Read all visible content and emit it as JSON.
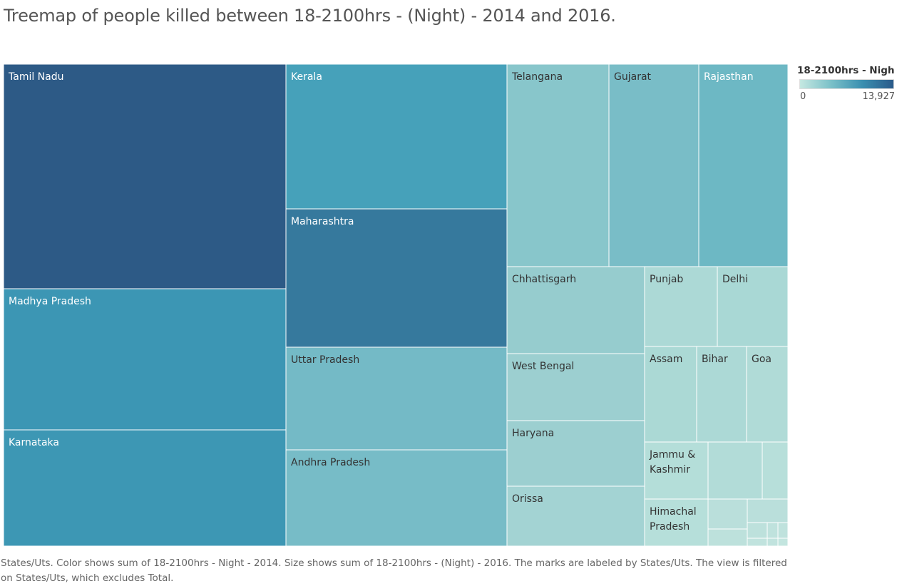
{
  "title": "Treemap of people killed between 18-2100hrs - (Night) - 2014 and 2016.",
  "legend": {
    "title": "18-2100hrs - Nigh..",
    "min_label": "0",
    "max_label": "13,927"
  },
  "caption": "States/Uts.  Color shows sum of 18-2100hrs - Night - 2014.  Size shows sum of 18-2100hrs - (Night) - 2016.  The marks are labeled by States/Uts. The view is filtered on States/Uts, which excludes Total.",
  "chart_data": {
    "type": "treemap",
    "color_measure": "18-2100hrs - Night - 2014",
    "size_measure": "18-2100hrs - (Night) - 2016",
    "color_range": [
      0,
      13927
    ],
    "items": [
      {
        "name": "Tamil Nadu",
        "label": "Tamil Nadu",
        "size": 12350,
        "color_value": 13927,
        "color": "#2d5a86"
      },
      {
        "name": "Madhya Pradesh",
        "label": "Madhya Pradesh",
        "size": 7820,
        "color_value": 7600,
        "color": "#3c96b4"
      },
      {
        "name": "Karnataka",
        "label": "Karnataka",
        "size": 6270,
        "color_value": 7500,
        "color": "#3d97b4"
      },
      {
        "name": "Kerala",
        "label": "Kerala",
        "size": 6220,
        "color_value": 7000,
        "color": "#46a1ba"
      },
      {
        "name": "Maharashtra",
        "label": "Maharashtra",
        "size": 5930,
        "color_value": 10200,
        "color": "#36799d"
      },
      {
        "name": "Uttar Pradesh",
        "label": "Uttar Pradesh",
        "size": 4400,
        "color_value": 4700,
        "color": "#74bac6"
      },
      {
        "name": "Andhra Pradesh",
        "label": "Andhra Pradesh",
        "size": 4080,
        "color_value": 4500,
        "color": "#77bcc7"
      },
      {
        "name": "Telangana",
        "label": "Telangana",
        "size": 3980,
        "color_value": 3600,
        "color": "#88c6cb"
      },
      {
        "name": "Gujarat",
        "label": "Gujarat",
        "size": 3520,
        "color_value": 4300,
        "color": "#79bdc7"
      },
      {
        "name": "Rajasthan",
        "label": "Rajasthan",
        "size": 3470,
        "color_value": 5000,
        "color": "#6db8c4"
      },
      {
        "name": "Chhattisgarh",
        "label": "Chhattisgarh",
        "size": 2270,
        "color_value": 3000,
        "color": "#96ccce"
      },
      {
        "name": "West Bengal",
        "label": "West Bengal",
        "size": 1750,
        "color_value": 2800,
        "color": "#9ccfd0"
      },
      {
        "name": "Haryana",
        "label": "Haryana",
        "size": 1720,
        "color_value": 2800,
        "color": "#9ccfd0"
      },
      {
        "name": "Orissa",
        "label": "Orissa",
        "size": 1550,
        "color_value": 2400,
        "color": "#a3d3d3"
      },
      {
        "name": "Punjab",
        "label": "Punjab",
        "size": 1130,
        "color_value": 1900,
        "color": "#acd9d6"
      },
      {
        "name": "Delhi",
        "label": "Delhi",
        "size": 1100,
        "color_value": 2000,
        "color": "#a9d8d5"
      },
      {
        "name": "Assam",
        "label": "Assam",
        "size": 960,
        "color_value": 1900,
        "color": "#abd9d5"
      },
      {
        "name": "Bihar",
        "label": "Bihar",
        "size": 910,
        "color_value": 1900,
        "color": "#acd9d6"
      },
      {
        "name": "Goa",
        "label": "Goa",
        "size": 880,
        "color_value": 1700,
        "color": "#b0dbd7"
      },
      {
        "name": "Jammu & Kashmir",
        "label": "Jammu &\nKashmir",
        "size": 590,
        "color_value": 1400,
        "color": "#b4ded9"
      },
      {
        "name": "",
        "label": "",
        "size": 590,
        "color_value": 1500,
        "color": "#b2dcd8"
      },
      {
        "name": "",
        "label": "",
        "size": 290,
        "color_value": 1200,
        "color": "#b7dfda"
      },
      {
        "name": "Himachal Pradesh",
        "label": "Himachal\nPradesh",
        "size": 610,
        "color_value": 1200,
        "color": "#b6dfda"
      },
      {
        "name": "",
        "label": "",
        "size": 190,
        "color_value": 1000,
        "color": "#badfdb"
      },
      {
        "name": "",
        "label": "",
        "size": 90,
        "color_value": 900,
        "color": "#bde1dc"
      },
      {
        "name": "",
        "label": "",
        "size": 130,
        "color_value": 1000,
        "color": "#badfdb"
      },
      {
        "name": "",
        "label": "",
        "size": 90,
        "color_value": 900,
        "color": "#bde1dc"
      },
      {
        "name": "",
        "label": "",
        "size": 60,
        "color_value": 800,
        "color": "#bfe2dd"
      },
      {
        "name": "",
        "label": "",
        "size": 40,
        "color_value": 800,
        "color": "#bfe2dd"
      },
      {
        "name": "",
        "label": "",
        "size": 30,
        "color_value": 700,
        "color": "#c1e3de"
      },
      {
        "name": "",
        "label": "",
        "size": 20,
        "color_value": 700,
        "color": "#c1e3de"
      },
      {
        "name": "",
        "label": "",
        "size": 20,
        "color_value": 600,
        "color": "#c3e5df"
      }
    ]
  }
}
